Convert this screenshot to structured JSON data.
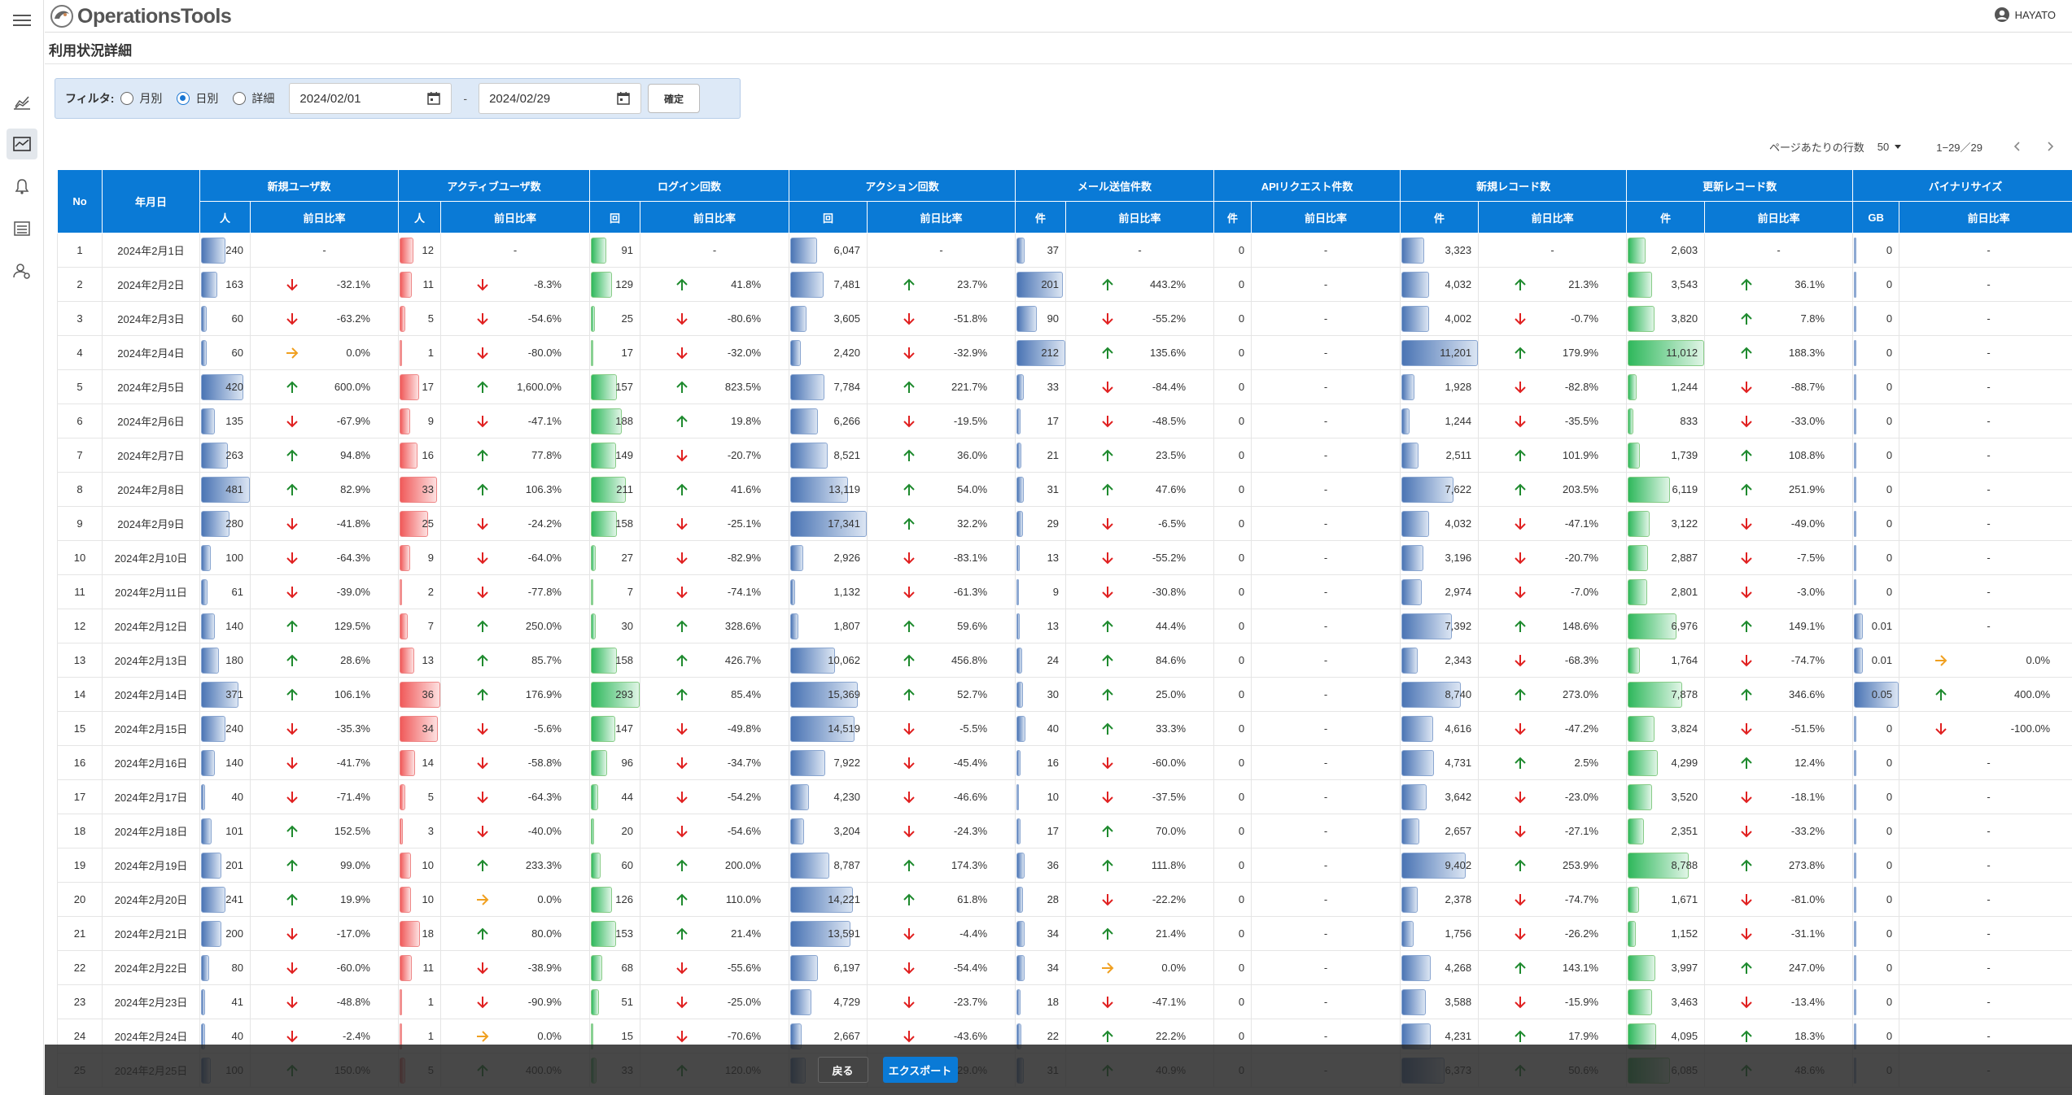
{
  "app": {
    "title": "OperationsTools",
    "user": "HAYATO"
  },
  "page": {
    "title": "利用状況詳細"
  },
  "filter": {
    "label": "フィルタ:",
    "options": [
      "月別",
      "日別",
      "詳細"
    ],
    "selected": "日別",
    "start": "2024/02/01",
    "end": "2024/02/29",
    "separator": "-",
    "confirm": "確定"
  },
  "pager": {
    "rows_label": "ページあたりの行数",
    "rows_value": "50",
    "range": "1−29／29"
  },
  "table": {
    "group_headers": [
      "No",
      "年月日",
      "新規ユーザ数",
      "アクティブユーザ数",
      "ログイン回数",
      "アクション回数",
      "メール送信件数",
      "APIリクエスト件数",
      "新規レコード数",
      "更新レコード数",
      "バイナリサイズ"
    ],
    "units": [
      "人",
      "人",
      "回",
      "回",
      "件",
      "件",
      "件",
      "件",
      "GB"
    ],
    "ratio_label": "前日比率",
    "rows": [
      [
        "1",
        "2024年2月1日",
        "240",
        "-",
        "12",
        "-",
        "91",
        "-",
        "6,047",
        "-",
        "37",
        "-",
        "0",
        "-",
        "3,323",
        "-",
        "2,603",
        "-",
        "0",
        "-"
      ],
      [
        "2",
        "2024年2月2日",
        "163",
        "-32.1%",
        "11",
        "-8.3%",
        "129",
        "41.8%",
        "7,481",
        "23.7%",
        "201",
        "443.2%",
        "0",
        "-",
        "4,032",
        "21.3%",
        "3,543",
        "36.1%",
        "0",
        "-"
      ],
      [
        "3",
        "2024年2月3日",
        "60",
        "-63.2%",
        "5",
        "-54.6%",
        "25",
        "-80.6%",
        "3,605",
        "-51.8%",
        "90",
        "-55.2%",
        "0",
        "-",
        "4,002",
        "-0.7%",
        "3,820",
        "7.8%",
        "0",
        "-"
      ],
      [
        "4",
        "2024年2月4日",
        "60",
        "0.0%",
        "1",
        "-80.0%",
        "17",
        "-32.0%",
        "2,420",
        "-32.9%",
        "212",
        "135.6%",
        "0",
        "-",
        "11,201",
        "179.9%",
        "11,012",
        "188.3%",
        "0",
        "-"
      ],
      [
        "5",
        "2024年2月5日",
        "420",
        "600.0%",
        "17",
        "1,600.0%",
        "157",
        "823.5%",
        "7,784",
        "221.7%",
        "33",
        "-84.4%",
        "0",
        "-",
        "1,928",
        "-82.8%",
        "1,244",
        "-88.7%",
        "0",
        "-"
      ],
      [
        "6",
        "2024年2月6日",
        "135",
        "-67.9%",
        "9",
        "-47.1%",
        "188",
        "19.8%",
        "6,266",
        "-19.5%",
        "17",
        "-48.5%",
        "0",
        "-",
        "1,244",
        "-35.5%",
        "833",
        "-33.0%",
        "0",
        "-"
      ],
      [
        "7",
        "2024年2月7日",
        "263",
        "94.8%",
        "16",
        "77.8%",
        "149",
        "-20.7%",
        "8,521",
        "36.0%",
        "21",
        "23.5%",
        "0",
        "-",
        "2,511",
        "101.9%",
        "1,739",
        "108.8%",
        "0",
        "-"
      ],
      [
        "8",
        "2024年2月8日",
        "481",
        "82.9%",
        "33",
        "106.3%",
        "211",
        "41.6%",
        "13,119",
        "54.0%",
        "31",
        "47.6%",
        "0",
        "-",
        "7,622",
        "203.5%",
        "6,119",
        "251.9%",
        "0",
        "-"
      ],
      [
        "9",
        "2024年2月9日",
        "280",
        "-41.8%",
        "25",
        "-24.2%",
        "158",
        "-25.1%",
        "17,341",
        "32.2%",
        "29",
        "-6.5%",
        "0",
        "-",
        "4,032",
        "-47.1%",
        "3,122",
        "-49.0%",
        "0",
        "-"
      ],
      [
        "10",
        "2024年2月10日",
        "100",
        "-64.3%",
        "9",
        "-64.0%",
        "27",
        "-82.9%",
        "2,926",
        "-83.1%",
        "13",
        "-55.2%",
        "0",
        "-",
        "3,196",
        "-20.7%",
        "2,887",
        "-7.5%",
        "0",
        "-"
      ],
      [
        "11",
        "2024年2月11日",
        "61",
        "-39.0%",
        "2",
        "-77.8%",
        "7",
        "-74.1%",
        "1,132",
        "-61.3%",
        "9",
        "-30.8%",
        "0",
        "-",
        "2,974",
        "-7.0%",
        "2,801",
        "-3.0%",
        "0",
        "-"
      ],
      [
        "12",
        "2024年2月12日",
        "140",
        "129.5%",
        "7",
        "250.0%",
        "30",
        "328.6%",
        "1,807",
        "59.6%",
        "13",
        "44.4%",
        "0",
        "-",
        "7,392",
        "148.6%",
        "6,976",
        "149.1%",
        "0.01",
        "-"
      ],
      [
        "13",
        "2024年2月13日",
        "180",
        "28.6%",
        "13",
        "85.7%",
        "158",
        "426.7%",
        "10,062",
        "456.8%",
        "24",
        "84.6%",
        "0",
        "-",
        "2,343",
        "-68.3%",
        "1,764",
        "-74.7%",
        "0.01",
        "0.0%"
      ],
      [
        "14",
        "2024年2月14日",
        "371",
        "106.1%",
        "36",
        "176.9%",
        "293",
        "85.4%",
        "15,369",
        "52.7%",
        "30",
        "25.0%",
        "0",
        "-",
        "8,740",
        "273.0%",
        "7,878",
        "346.6%",
        "0.05",
        "400.0%"
      ],
      [
        "15",
        "2024年2月15日",
        "240",
        "-35.3%",
        "34",
        "-5.6%",
        "147",
        "-49.8%",
        "14,519",
        "-5.5%",
        "40",
        "33.3%",
        "0",
        "-",
        "4,616",
        "-47.2%",
        "3,824",
        "-51.5%",
        "0",
        "-100.0%"
      ],
      [
        "16",
        "2024年2月16日",
        "140",
        "-41.7%",
        "14",
        "-58.8%",
        "96",
        "-34.7%",
        "7,922",
        "-45.4%",
        "16",
        "-60.0%",
        "0",
        "-",
        "4,731",
        "2.5%",
        "4,299",
        "12.4%",
        "0",
        "-"
      ],
      [
        "17",
        "2024年2月17日",
        "40",
        "-71.4%",
        "5",
        "-64.3%",
        "44",
        "-54.2%",
        "4,230",
        "-46.6%",
        "10",
        "-37.5%",
        "0",
        "-",
        "3,642",
        "-23.0%",
        "3,520",
        "-18.1%",
        "0",
        "-"
      ],
      [
        "18",
        "2024年2月18日",
        "101",
        "152.5%",
        "3",
        "-40.0%",
        "20",
        "-54.6%",
        "3,204",
        "-24.3%",
        "17",
        "70.0%",
        "0",
        "-",
        "2,657",
        "-27.1%",
        "2,351",
        "-33.2%",
        "0",
        "-"
      ],
      [
        "19",
        "2024年2月19日",
        "201",
        "99.0%",
        "10",
        "233.3%",
        "60",
        "200.0%",
        "8,787",
        "174.3%",
        "36",
        "111.8%",
        "0",
        "-",
        "9,402",
        "253.9%",
        "8,788",
        "273.8%",
        "0",
        "-"
      ],
      [
        "20",
        "2024年2月20日",
        "241",
        "19.9%",
        "10",
        "0.0%",
        "126",
        "110.0%",
        "14,221",
        "61.8%",
        "28",
        "-22.2%",
        "0",
        "-",
        "2,378",
        "-74.7%",
        "1,671",
        "-81.0%",
        "0",
        "-"
      ],
      [
        "21",
        "2024年2月21日",
        "200",
        "-17.0%",
        "18",
        "80.0%",
        "153",
        "21.4%",
        "13,591",
        "-4.4%",
        "34",
        "21.4%",
        "0",
        "-",
        "1,756",
        "-26.2%",
        "1,152",
        "-31.1%",
        "0",
        "-"
      ],
      [
        "22",
        "2024年2月22日",
        "80",
        "-60.0%",
        "11",
        "-38.9%",
        "68",
        "-55.6%",
        "6,197",
        "-54.4%",
        "34",
        "0.0%",
        "0",
        "-",
        "4,268",
        "143.1%",
        "3,997",
        "247.0%",
        "0",
        "-"
      ],
      [
        "23",
        "2024年2月23日",
        "41",
        "-48.8%",
        "1",
        "-90.9%",
        "51",
        "-25.0%",
        "4,729",
        "-23.7%",
        "18",
        "-47.1%",
        "0",
        "-",
        "3,588",
        "-15.9%",
        "3,463",
        "-13.4%",
        "0",
        "-"
      ],
      [
        "24",
        "2024年2月24日",
        "40",
        "-2.4%",
        "1",
        "0.0%",
        "15",
        "-70.6%",
        "2,667",
        "-43.6%",
        "22",
        "22.2%",
        "0",
        "-",
        "4,231",
        "17.9%",
        "4,095",
        "18.3%",
        "0",
        "-"
      ],
      [
        "25",
        "2024年2月25日",
        "100",
        "150.0%",
        "5",
        "400.0%",
        "33",
        "120.0%",
        "3,440",
        "29.0%",
        "31",
        "40.9%",
        "0",
        "-",
        "6,373",
        "50.6%",
        "6,085",
        "48.6%",
        "0",
        "-"
      ]
    ]
  },
  "footer": {
    "back": "戻る",
    "export": "エクスポート"
  },
  "colors": {
    "header": "#0a7ad6",
    "up": "#1e8a2e",
    "down": "#e02020",
    "flat": "#f0a020"
  }
}
